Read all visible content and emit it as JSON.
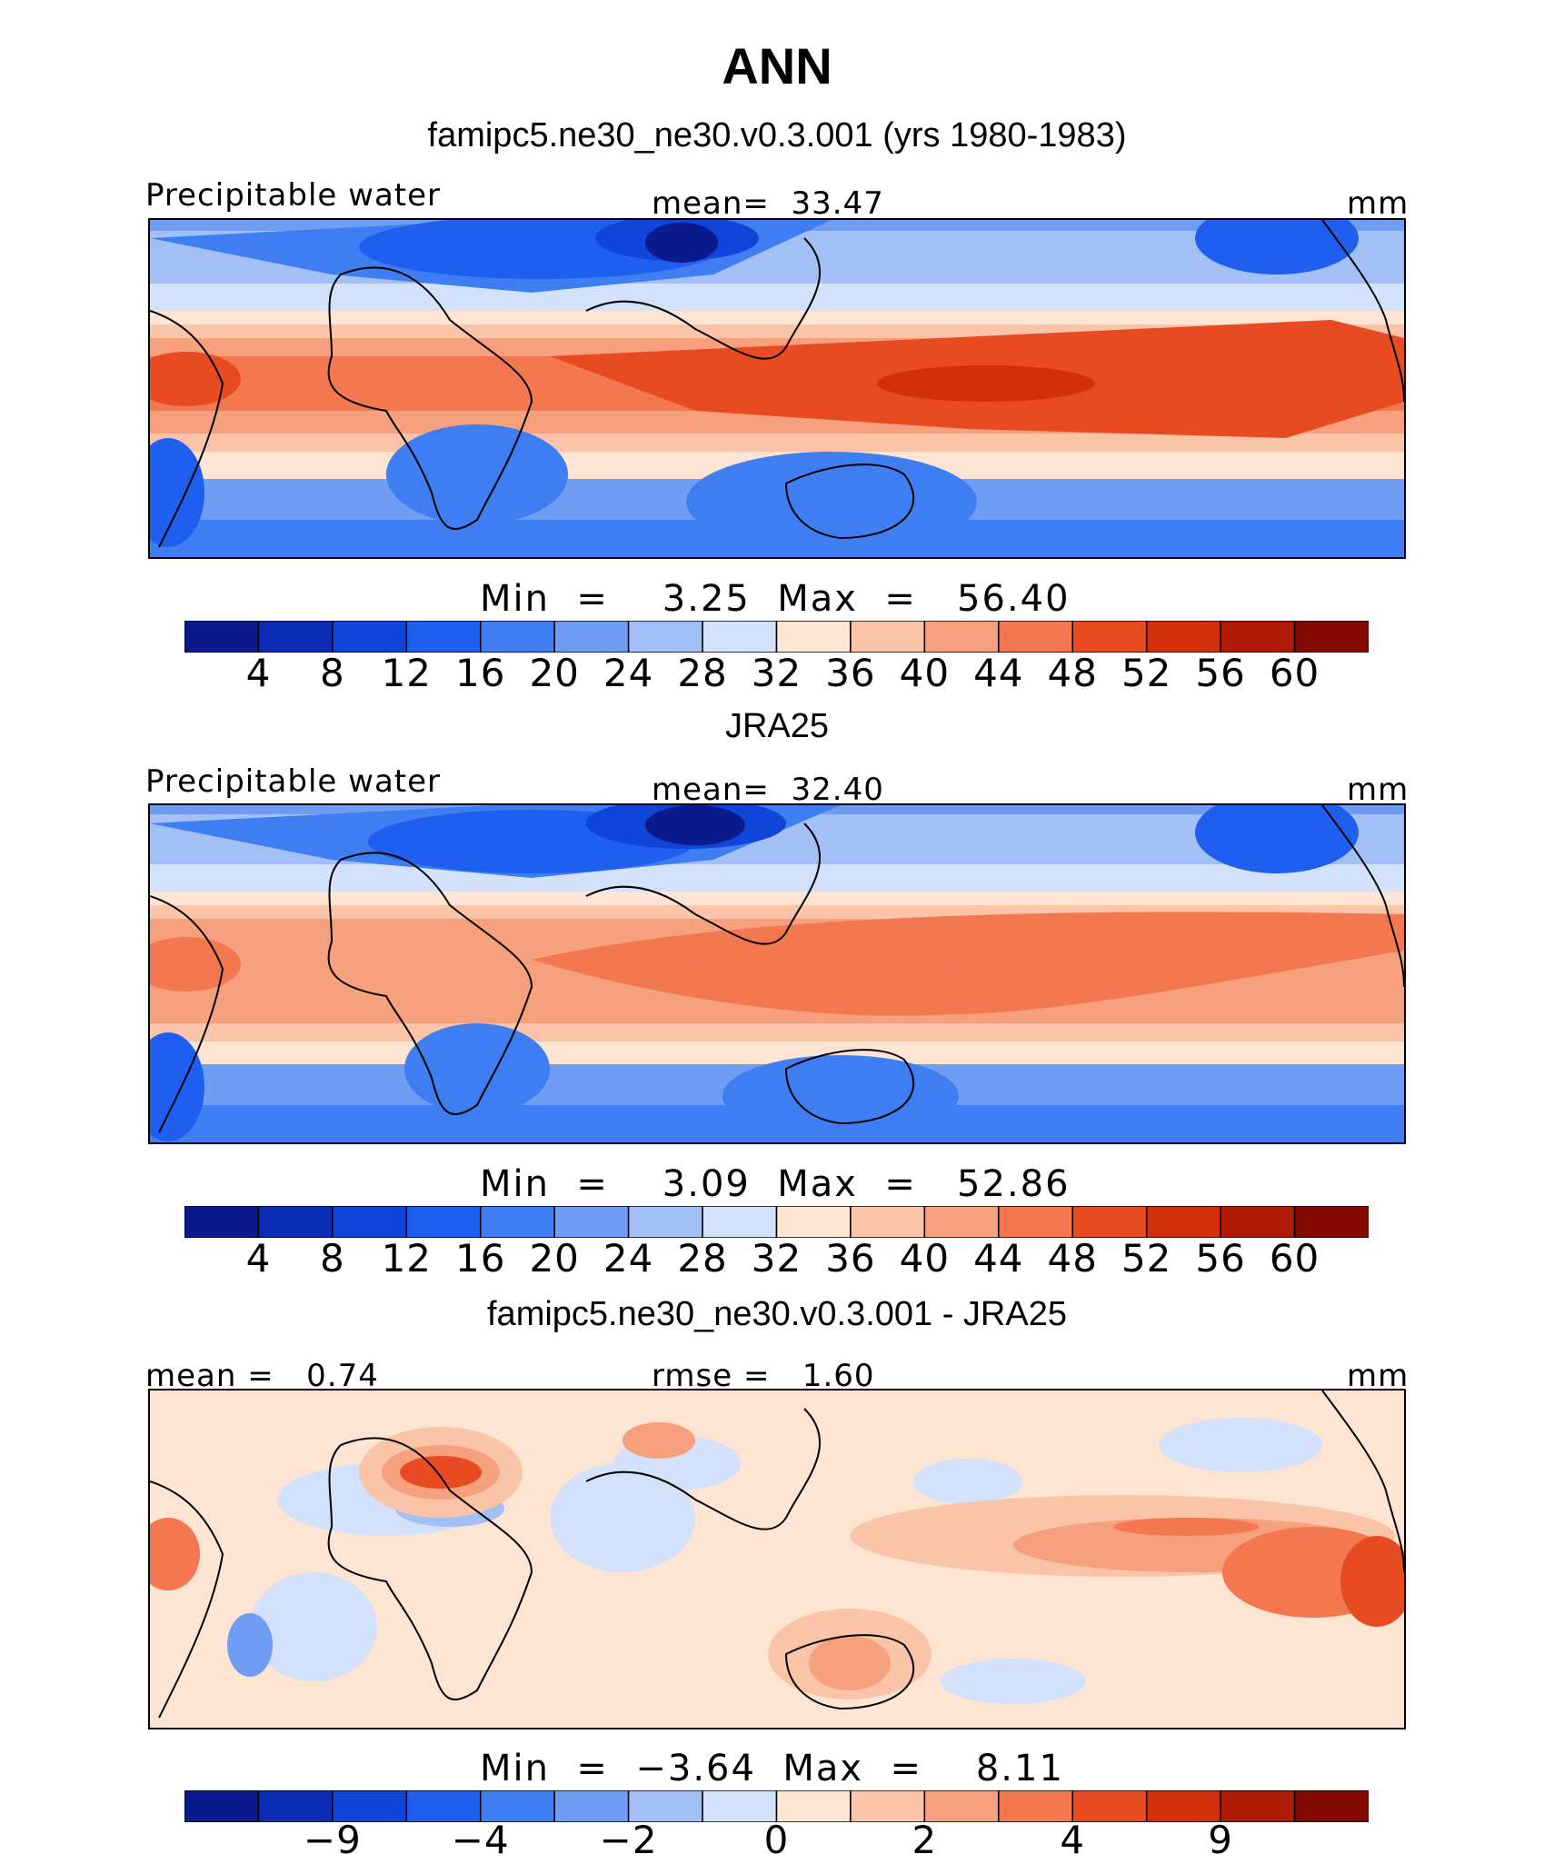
{
  "title": "ANN",
  "panels": [
    {
      "heading": "famipc5.ne30_ne30.v0.3.001 (yrs 1980-1983)",
      "left_label": "Precipitable water",
      "center_label": "mean=  33.47",
      "right_label": "mm",
      "minmax": "Min  =    3.25  Max  =   56.40"
    },
    {
      "heading": "JRA25",
      "left_label": "Precipitable water",
      "center_label": "mean=  32.40",
      "right_label": "mm",
      "minmax": "Min  =    3.09  Max  =   52.86"
    },
    {
      "heading": "famipc5.ne30_ne30.v0.3.001 - JRA25",
      "left_label": "mean =   0.74",
      "center_label": "rmse =   1.60",
      "right_label": "mm",
      "minmax": "Min  =  −3.64  Max  =    8.11"
    }
  ],
  "chart_data": [
    {
      "type": "heatmap",
      "title": "famipc5.ne30_ne30.v0.3.001 (yrs 1980-1983)",
      "variable": "Precipitable water",
      "units": "mm",
      "mean": 33.47,
      "min": 3.25,
      "max": 56.4,
      "colorbar_levels": [
        "4",
        "8",
        "12",
        "16",
        "20",
        "24",
        "28",
        "32",
        "36",
        "40",
        "44",
        "48",
        "52",
        "56",
        "60"
      ],
      "colorbar_colors": [
        "#0b1b8e",
        "#0c2bb4",
        "#0f45d8",
        "#1e5ff0",
        "#3f7ef2",
        "#6e9df3",
        "#a3c0f6",
        "#d3e2fa",
        "#fde4d3",
        "#f9c4a7",
        "#f6a07d",
        "#f37850",
        "#e84b22",
        "#d22f0c",
        "#ae1a05",
        "#820a03"
      ]
    },
    {
      "type": "heatmap",
      "title": "JRA25",
      "variable": "Precipitable water",
      "units": "mm",
      "mean": 32.4,
      "min": 3.09,
      "max": 52.86,
      "colorbar_levels": [
        "4",
        "8",
        "12",
        "16",
        "20",
        "24",
        "28",
        "32",
        "36",
        "40",
        "44",
        "48",
        "52",
        "56",
        "60"
      ],
      "colorbar_colors": [
        "#0b1b8e",
        "#0c2bb4",
        "#0f45d8",
        "#1e5ff0",
        "#3f7ef2",
        "#6e9df3",
        "#a3c0f6",
        "#d3e2fa",
        "#fde4d3",
        "#f9c4a7",
        "#f6a07d",
        "#f37850",
        "#e84b22",
        "#d22f0c",
        "#ae1a05",
        "#820a03"
      ]
    },
    {
      "type": "heatmap",
      "title": "famipc5.ne30_ne30.v0.3.001 - JRA25",
      "units": "mm",
      "mean": 0.74,
      "rmse": 1.6,
      "min": -3.64,
      "max": 8.11,
      "colorbar_levels": [
        "−9",
        "−4",
        "−2",
        "0",
        "2",
        "4",
        "9"
      ],
      "colorbar_colors": [
        "#0b1b8e",
        "#0c2bb4",
        "#0f45d8",
        "#1e5ff0",
        "#3f7ef2",
        "#6e9df3",
        "#a3c0f6",
        "#d3e2fa",
        "#fde4d3",
        "#f9c4a7",
        "#f6a07d",
        "#f37850",
        "#e84b22",
        "#d22f0c",
        "#ae1a05",
        "#820a03"
      ]
    }
  ]
}
